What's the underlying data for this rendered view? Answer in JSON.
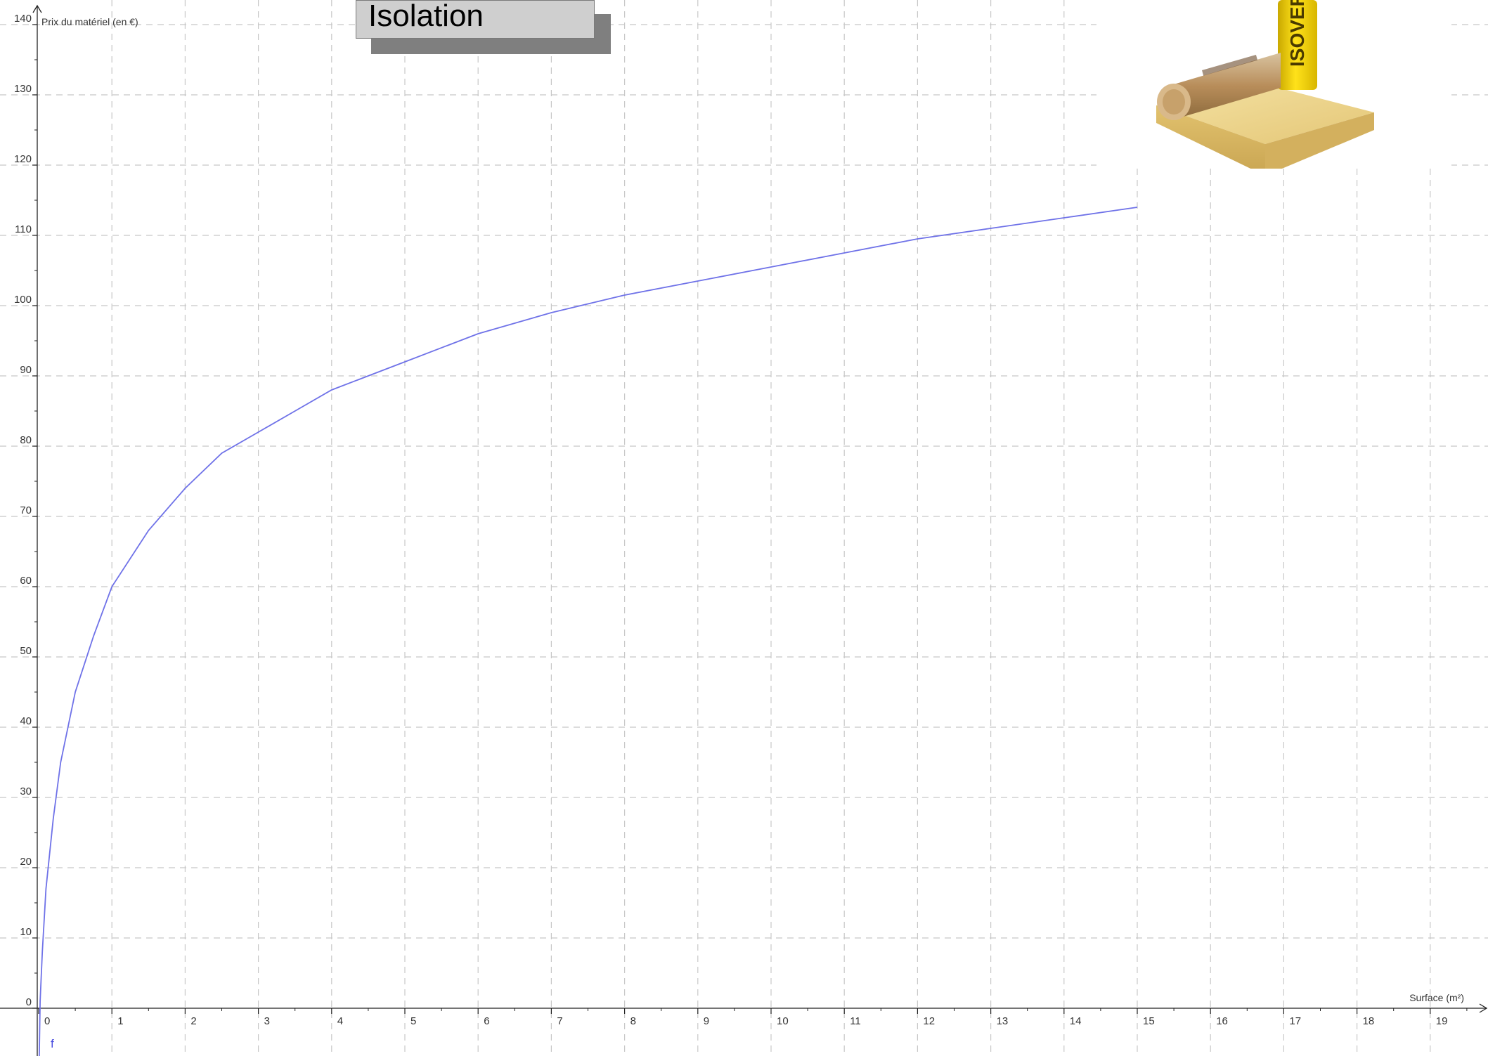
{
  "title": "Isolation",
  "product_brand": "ISOVER",
  "colors": {
    "curve": "#6f72e8",
    "grid": "#c8c8c8",
    "axis": "#222222"
  },
  "chart_data": {
    "type": "line",
    "xlabel": "Surface (m²)",
    "ylabel": "Prix du matériel (en €)",
    "xlim": [
      0,
      19
    ],
    "ylim": [
      0,
      140
    ],
    "x_ticks": [
      0,
      1,
      2,
      3,
      4,
      5,
      6,
      7,
      8,
      9,
      10,
      11,
      12,
      13,
      14,
      15,
      16,
      17,
      18,
      19
    ],
    "y_ticks": [
      0,
      10,
      20,
      30,
      40,
      50,
      60,
      70,
      80,
      90,
      100,
      110,
      120,
      130,
      140
    ],
    "grid": true,
    "series": [
      {
        "name": "f",
        "x": [
          0.02,
          0.05,
          0.1,
          0.2,
          0.3,
          0.5,
          0.75,
          1,
          1.5,
          2,
          2.5,
          3,
          3.5,
          4,
          4.5,
          5,
          6,
          7,
          8,
          9,
          10,
          11,
          12,
          13,
          14,
          15
        ],
        "y": [
          1,
          8,
          17,
          27,
          35,
          45,
          53,
          60,
          68,
          74,
          79,
          82,
          85,
          88,
          90,
          92,
          96,
          99,
          101.5,
          103.5,
          105.5,
          107.5,
          109.5,
          111,
          112.5,
          114
        ]
      }
    ]
  }
}
